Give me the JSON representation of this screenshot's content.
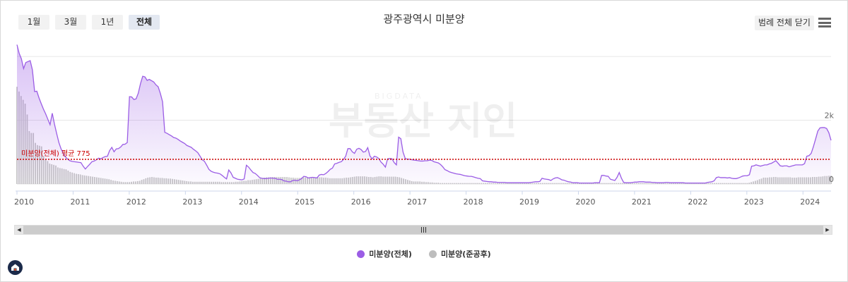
{
  "toolbar": {
    "ranges": [
      "1월",
      "3월",
      "1년",
      "전체"
    ],
    "active_range": "전체",
    "legend_toggle_label": "범례 전체 닫기",
    "menu_icon": "hamburger-icon"
  },
  "watermark": {
    "top": "BIGDATA",
    "main": "부동산 지인"
  },
  "colors": {
    "total": "#9b5de5",
    "completed": "#bdbdbd",
    "average": "#cc0000"
  },
  "chart_data": {
    "type": "bar+area",
    "title": "광주광역시 미분양",
    "x_start": "2010-01",
    "x_end": "2024-07",
    "x_ticks": [
      "2010",
      "2011",
      "2012",
      "2013",
      "2014",
      "2015",
      "2016",
      "2017",
      "2018",
      "2019",
      "2020",
      "2021",
      "2022",
      "2023",
      "2024"
    ],
    "y_ticks": [
      {
        "value": 0,
        "label": "0"
      },
      {
        "value": 2000,
        "label": "2k"
      }
    ],
    "ylim": [
      0,
      4400
    ],
    "grid": true,
    "average": {
      "value": 775,
      "label": "미분양(전체) 평균 775"
    },
    "series": [
      {
        "name": "미분양(전체)",
        "type": "area",
        "values": [
          4370,
          4100,
          3930,
          3620,
          3810,
          3840,
          3870,
          3580,
          2900,
          2910,
          2700,
          2520,
          2350,
          2200,
          2030,
          1860,
          2220,
          1880,
          1580,
          1300,
          1100,
          960,
          850,
          780,
          730,
          710,
          700,
          690,
          680,
          670,
          560,
          470,
          550,
          620,
          700,
          720,
          760,
          810,
          790,
          830,
          860,
          870,
          1050,
          1150,
          1010,
          1100,
          1110,
          1160,
          1240,
          1250,
          1300,
          2740,
          2730,
          2650,
          2670,
          2850,
          3150,
          3380,
          3360,
          3250,
          3280,
          3240,
          3200,
          3110,
          3050,
          2840,
          2580,
          1620,
          1590,
          1550,
          1510,
          1460,
          1440,
          1400,
          1350,
          1310,
          1270,
          1210,
          1180,
          1150,
          1090,
          1040,
          980,
          870,
          760,
          710,
          590,
          460,
          400,
          370,
          350,
          340,
          320,
          270,
          210,
          160,
          440,
          350,
          210,
          180,
          150,
          140,
          130,
          160,
          590,
          530,
          440,
          360,
          330,
          270,
          200,
          180,
          170,
          170,
          180,
          190,
          180,
          180,
          150,
          150,
          140,
          100,
          90,
          70,
          70,
          110,
          120,
          100,
          130,
          170,
          240,
          230,
          190,
          200,
          210,
          200,
          190,
          280,
          300,
          290,
          330,
          390,
          460,
          500,
          630,
          650,
          680,
          700,
          770,
          870,
          1110,
          1110,
          1010,
          960,
          1090,
          1120,
          1080,
          1000,
          1020,
          1140,
          880,
          790,
          870,
          850,
          800,
          690,
          620,
          530,
          790,
          800,
          790,
          670,
          600,
          1470,
          1420,
          1000,
          800,
          780,
          780,
          760,
          750,
          740,
          730,
          720,
          720,
          730,
          730,
          750,
          740,
          700,
          680,
          660,
          610,
          540,
          450,
          420,
          380,
          360,
          340,
          320,
          310,
          300,
          280,
          260,
          250,
          240,
          240,
          220,
          200,
          180,
          170,
          100,
          90,
          80,
          70,
          70,
          60,
          60,
          50,
          50,
          50,
          50,
          40,
          40,
          40,
          40,
          40,
          40,
          40,
          40,
          40,
          40,
          40,
          50,
          60,
          70,
          70,
          80,
          180,
          160,
          150,
          140,
          110,
          160,
          190,
          200,
          170,
          130,
          120,
          90,
          70,
          60,
          40,
          40,
          40,
          30,
          30,
          30,
          30,
          30,
          30,
          30,
          40,
          40,
          40,
          270,
          270,
          250,
          240,
          150,
          130,
          110,
          210,
          360,
          180,
          50,
          40,
          40,
          40,
          50,
          60,
          60,
          70,
          70,
          70,
          60,
          60,
          60,
          50,
          50,
          40,
          40,
          40,
          40,
          50,
          50,
          40,
          40,
          40,
          40,
          40,
          40,
          40,
          30,
          30,
          30,
          30,
          30,
          30,
          30,
          30,
          30,
          30,
          50,
          60,
          70,
          100,
          200,
          220,
          200,
          200,
          200,
          190,
          200,
          180,
          170,
          170,
          190,
          220,
          250,
          260,
          260,
          290,
          560,
          570,
          600,
          580,
          560,
          580,
          600,
          600,
          630,
          650,
          690,
          730,
          650,
          570,
          560,
          570,
          570,
          540,
          560,
          580,
          600,
          600,
          600,
          600,
          640,
          870,
          890,
          960,
          1170,
          1410,
          1660,
          1760,
          1770,
          1770,
          1740,
          1610,
          1370
        ]
      },
      {
        "name": "미분양(준공후)",
        "type": "bar",
        "values": [
          3050,
          2900,
          2760,
          2640,
          2520,
          2180,
          1660,
          1600,
          1600,
          1290,
          1220,
          1200,
          1180,
          880,
          780,
          720,
          640,
          620,
          600,
          580,
          520,
          500,
          490,
          470,
          460,
          420,
          380,
          360,
          340,
          320,
          310,
          300,
          280,
          270,
          260,
          250,
          240,
          230,
          220,
          210,
          200,
          190,
          180,
          170,
          160,
          150,
          130,
          110,
          100,
          90,
          80,
          70,
          60,
          60,
          60,
          60,
          70,
          80,
          80,
          90,
          100,
          130,
          150,
          180,
          200,
          210,
          220,
          210,
          200,
          200,
          190,
          190,
          180,
          180,
          170,
          170,
          160,
          150,
          140,
          130,
          120,
          110,
          100,
          90,
          80,
          80,
          70,
          70,
          70,
          70,
          70,
          70,
          70,
          70,
          70,
          70,
          70,
          70,
          70,
          70,
          60,
          60,
          60,
          60,
          60,
          60,
          60,
          70,
          70,
          80,
          90,
          100,
          100,
          120,
          120,
          130,
          140,
          150,
          160,
          180,
          190,
          200,
          210,
          210,
          210,
          220,
          220,
          220,
          220,
          220,
          220,
          220,
          220,
          210,
          200,
          200,
          190,
          190,
          190,
          200,
          210,
          210,
          210,
          210,
          210,
          210,
          210,
          210,
          210,
          210,
          200,
          200,
          190,
          180,
          180,
          180,
          180,
          180,
          180,
          180,
          190,
          200,
          200,
          210,
          220,
          230,
          240,
          240,
          240,
          240,
          240,
          230,
          220,
          220,
          210,
          220,
          230,
          240,
          240,
          230,
          230,
          230,
          230,
          230,
          230,
          230,
          220,
          210,
          190,
          170,
          150,
          130,
          110,
          90,
          80,
          80,
          80,
          80,
          70,
          70,
          60,
          60,
          50,
          50,
          40,
          40,
          40,
          30,
          30,
          30,
          30,
          30,
          30,
          30,
          30,
          30,
          30,
          30,
          30,
          30,
          30,
          30,
          30,
          30,
          30,
          30,
          30,
          30,
          30,
          30,
          30,
          30,
          30,
          30,
          30,
          30,
          30,
          30,
          30,
          30,
          30,
          30,
          30,
          30,
          30,
          30,
          30,
          30,
          30,
          30,
          30,
          30,
          30,
          30,
          30,
          30,
          30,
          30,
          30,
          30,
          30,
          30,
          30,
          30,
          30,
          30,
          30,
          30,
          30,
          30,
          30,
          30,
          30,
          30,
          30,
          30,
          30,
          30,
          30,
          30,
          30,
          30,
          30,
          30,
          30,
          30,
          30,
          30,
          30,
          30,
          30,
          30,
          30,
          30,
          30,
          30,
          30,
          30,
          30,
          30,
          30,
          30,
          30,
          30,
          30,
          30,
          30,
          30,
          30,
          30,
          30,
          30,
          30,
          30,
          30,
          30,
          30,
          30,
          30,
          30,
          30,
          30,
          30,
          30,
          30,
          30,
          30,
          30,
          30,
          30,
          30,
          30,
          30,
          30,
          30,
          30,
          30,
          30,
          30,
          30,
          30,
          30,
          30,
          30,
          30,
          30,
          30,
          30,
          30,
          30,
          30,
          30,
          30,
          30,
          30,
          30,
          30,
          30,
          40,
          60,
          80,
          100,
          120,
          150,
          170,
          200,
          200,
          200,
          210,
          210,
          220,
          220,
          210,
          210,
          210,
          210,
          210,
          210,
          210,
          200,
          200,
          200,
          210,
          210,
          210,
          210,
          210,
          210,
          210,
          220,
          220,
          220,
          230,
          230,
          240,
          250,
          250,
          260,
          260
        ]
      }
    ],
    "legend": [
      "미분양(전체)",
      "미분양(준공후)"
    ],
    "legend_position": "bottom-center"
  }
}
